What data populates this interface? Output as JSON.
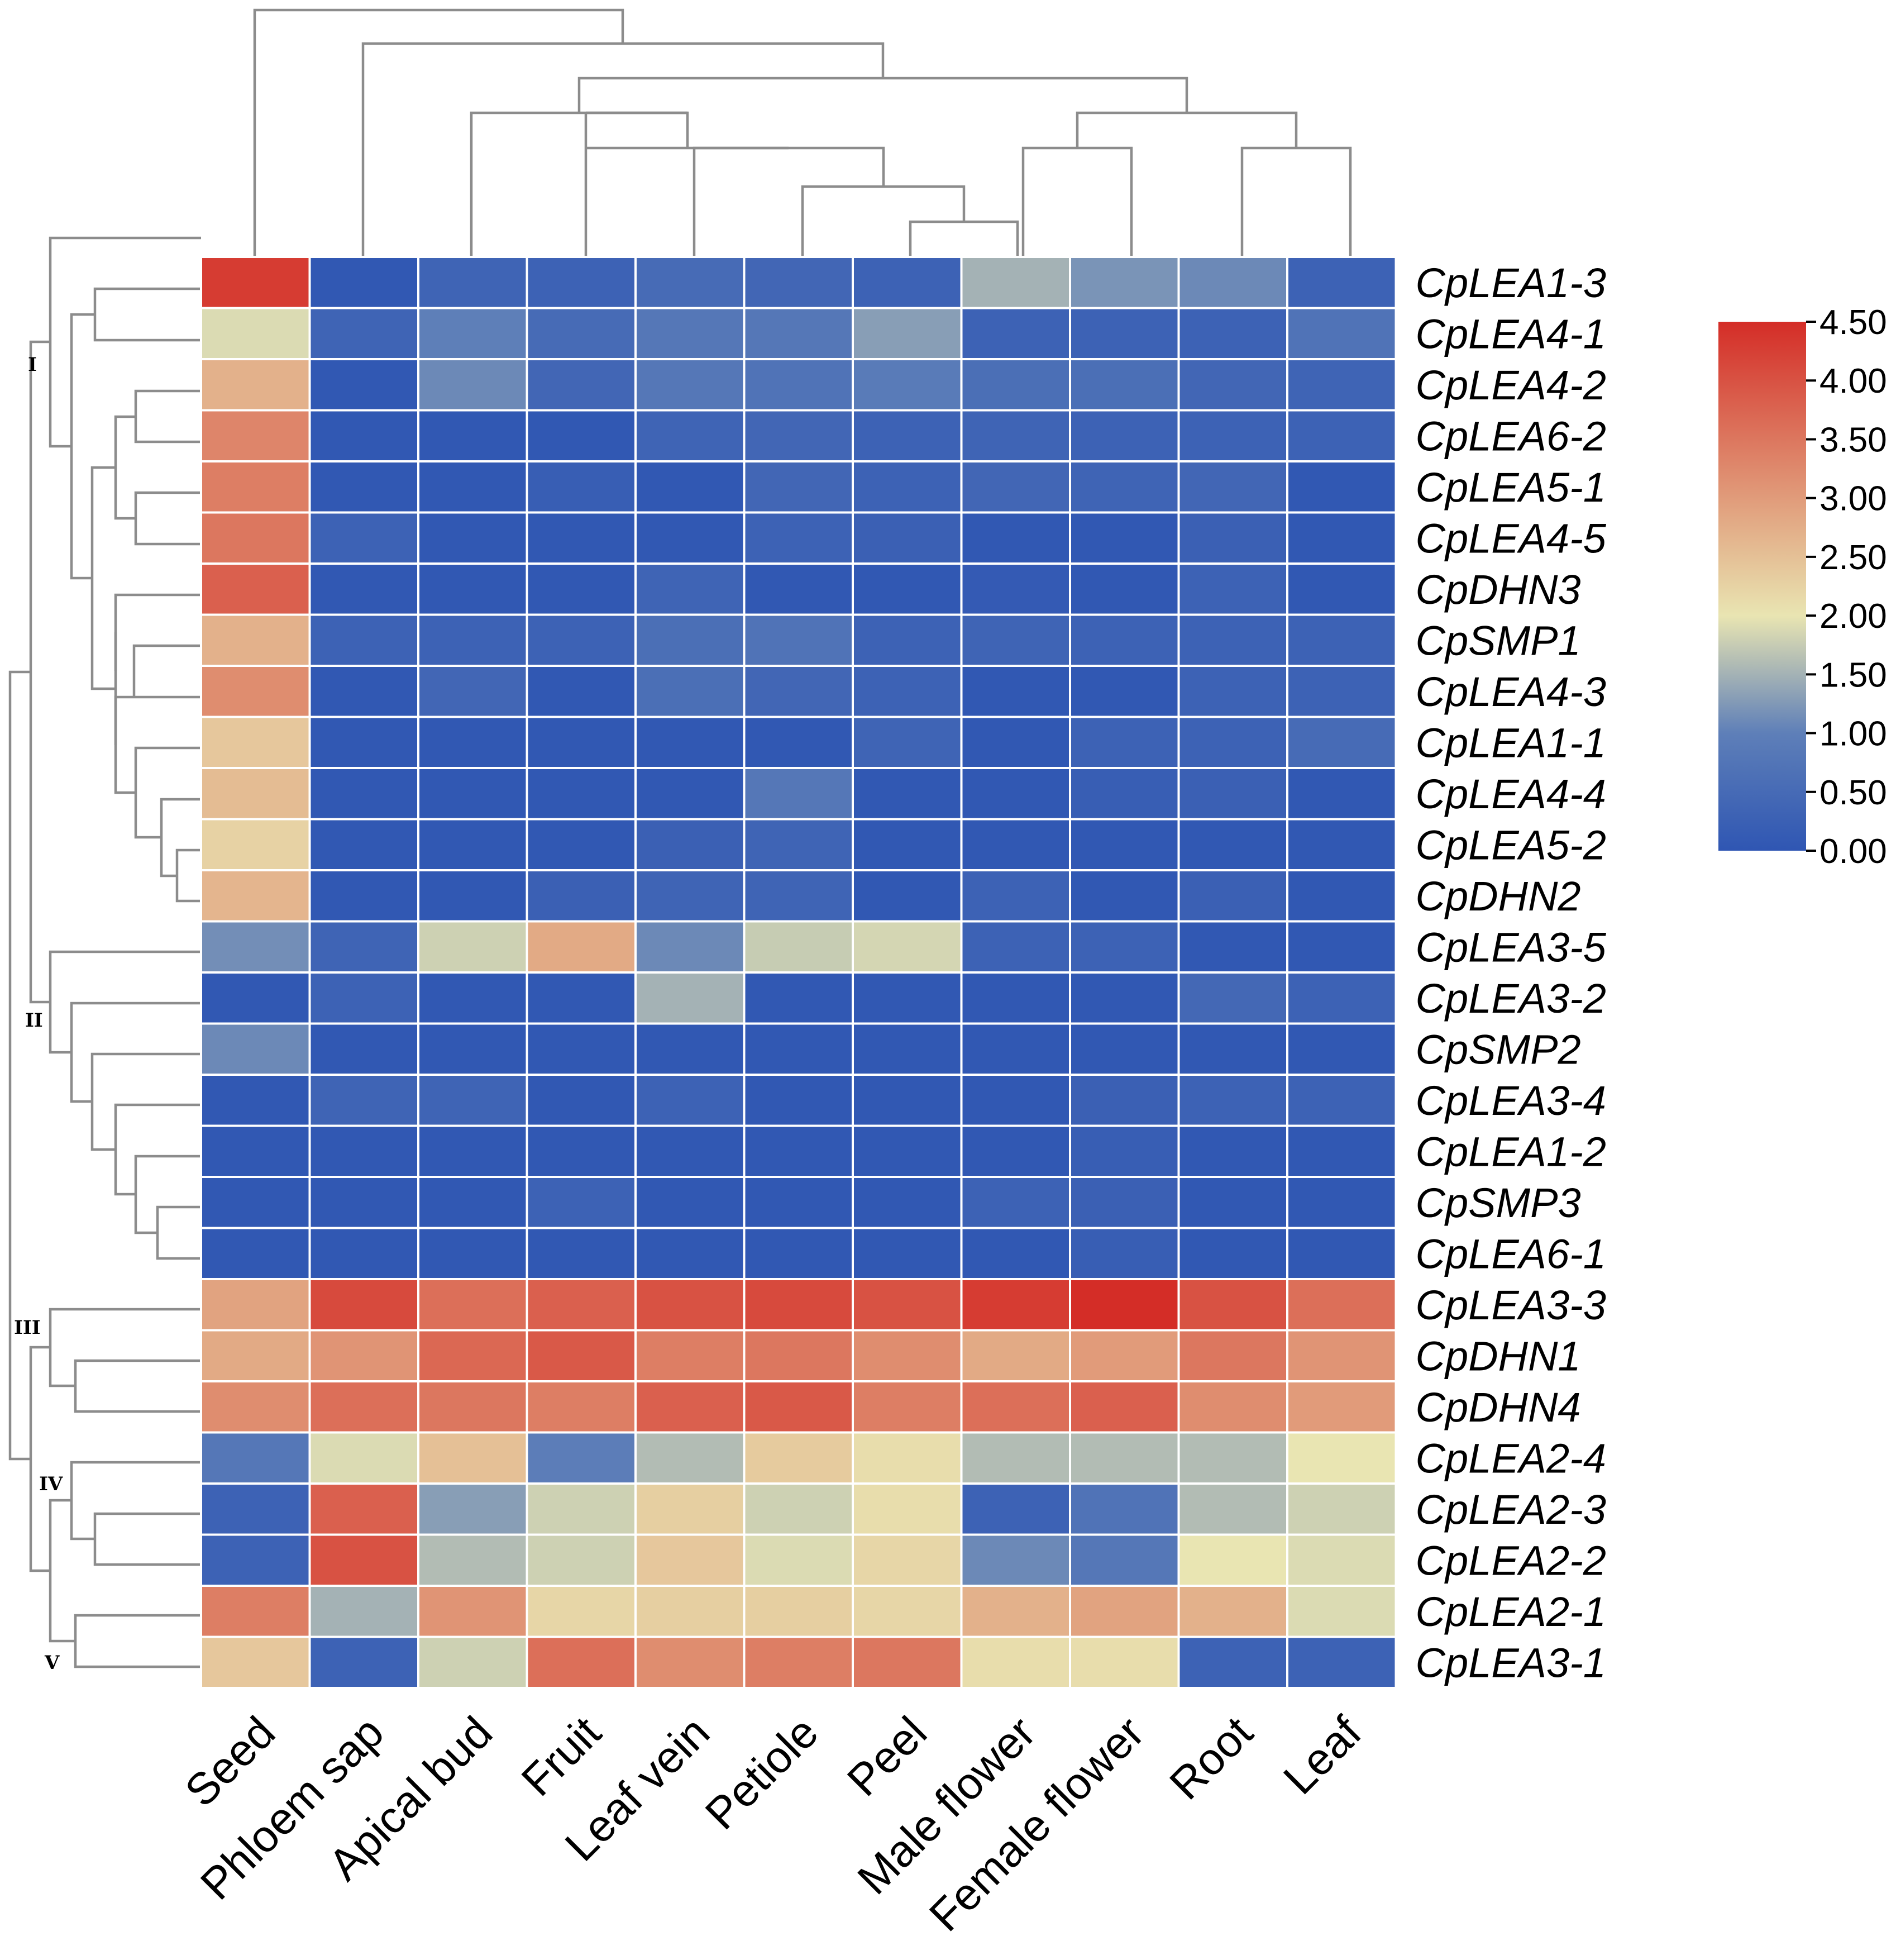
{
  "chart_data": {
    "type": "heatmap",
    "title": "",
    "columns": [
      "Seed",
      "Phloem sap",
      "Apical bud",
      "Fruit",
      "Leaf vein",
      "Petiole",
      "Peel",
      "Male flower",
      "Female flower",
      "Root",
      "Leaf"
    ],
    "rows": [
      "CpLEA1-3",
      "CpLEA4-1",
      "CpLEA4-2",
      "CpLEA6-2",
      "CpLEA5-1",
      "CpLEA4-5",
      "CpDHN3",
      "CpSMP1",
      "CpLEA4-3",
      "CpLEA1-1",
      "CpLEA4-4",
      "CpLEA5-2",
      "CpDHN2",
      "CpLEA3-5",
      "CpLEA3-2",
      "CpSMP2",
      "CpLEA3-4",
      "CpLEA1-2",
      "CpSMP3",
      "CpLEA6-1",
      "CpLEA3-3",
      "CpDHN1",
      "CpDHN4",
      "CpLEA2-4",
      "CpLEA2-3",
      "CpLEA2-2",
      "CpLEA2-1",
      "CpLEA3-1"
    ],
    "values": [
      [
        4.3,
        0.05,
        0.35,
        0.3,
        0.5,
        0.4,
        0.3,
        1.5,
        1.2,
        1.1,
        0.3
      ],
      [
        1.9,
        0.35,
        1.0,
        0.5,
        0.8,
        0.8,
        1.3,
        0.3,
        0.3,
        0.3,
        0.7
      ],
      [
        2.7,
        0.05,
        1.1,
        0.4,
        0.8,
        0.7,
        0.9,
        0.6,
        0.6,
        0.4,
        0.35
      ],
      [
        3.3,
        0.05,
        0.05,
        0.05,
        0.35,
        0.4,
        0.3,
        0.35,
        0.3,
        0.3,
        0.3
      ],
      [
        3.4,
        0.05,
        0.05,
        0.2,
        0.05,
        0.4,
        0.3,
        0.4,
        0.35,
        0.4,
        0.05
      ],
      [
        3.5,
        0.3,
        0.05,
        0.05,
        0.05,
        0.3,
        0.25,
        0.05,
        0.05,
        0.25,
        0.05
      ],
      [
        3.8,
        0.05,
        0.05,
        0.05,
        0.35,
        0.05,
        0.05,
        0.1,
        0.05,
        0.3,
        0.05
      ],
      [
        2.7,
        0.3,
        0.3,
        0.3,
        0.6,
        0.7,
        0.3,
        0.35,
        0.3,
        0.3,
        0.3
      ],
      [
        3.2,
        0.05,
        0.4,
        0.05,
        0.6,
        0.4,
        0.3,
        0.05,
        0.05,
        0.3,
        0.3
      ],
      [
        2.4,
        0.05,
        0.05,
        0.05,
        0.05,
        0.05,
        0.35,
        0.05,
        0.3,
        0.3,
        0.5
      ],
      [
        2.55,
        0.05,
        0.05,
        0.05,
        0.05,
        0.8,
        0.05,
        0.05,
        0.2,
        0.25,
        0.05
      ],
      [
        2.25,
        0.05,
        0.05,
        0.05,
        0.25,
        0.35,
        0.05,
        0.05,
        0.05,
        0.05,
        0.05
      ],
      [
        2.65,
        0.05,
        0.05,
        0.25,
        0.35,
        0.35,
        0.05,
        0.3,
        0.05,
        0.25,
        0.05
      ],
      [
        1.15,
        0.35,
        1.8,
        2.8,
        1.1,
        1.75,
        1.85,
        0.3,
        0.3,
        0.05,
        0.05
      ],
      [
        0.05,
        0.3,
        0.05,
        0.05,
        1.5,
        0.05,
        0.05,
        0.05,
        0.05,
        0.45,
        0.3
      ],
      [
        1.1,
        0.05,
        0.05,
        0.05,
        0.05,
        0.05,
        0.05,
        0.05,
        0.05,
        0.05,
        0.05
      ],
      [
        0.05,
        0.35,
        0.35,
        0.05,
        0.3,
        0.05,
        0.05,
        0.05,
        0.25,
        0.3,
        0.3
      ],
      [
        0.05,
        0.05,
        0.05,
        0.05,
        0.05,
        0.05,
        0.05,
        0.05,
        0.2,
        0.05,
        0.05
      ],
      [
        0.05,
        0.05,
        0.05,
        0.3,
        0.05,
        0.05,
        0.05,
        0.3,
        0.25,
        0.05,
        0.05
      ],
      [
        0.05,
        0.05,
        0.05,
        0.05,
        0.05,
        0.05,
        0.05,
        0.05,
        0.2,
        0.05,
        0.05
      ],
      [
        2.9,
        4.1,
        3.6,
        3.8,
        4.0,
        4.1,
        4.0,
        4.3,
        4.5,
        4.0,
        3.6
      ],
      [
        2.8,
        3.1,
        3.7,
        3.9,
        3.4,
        3.5,
        3.2,
        2.8,
        3.0,
        3.5,
        3.1
      ],
      [
        3.2,
        3.6,
        3.5,
        3.4,
        3.8,
        3.9,
        3.4,
        3.6,
        3.8,
        3.2,
        3.0
      ],
      [
        0.8,
        1.9,
        2.5,
        0.95,
        1.6,
        2.35,
        2.1,
        1.6,
        1.6,
        1.6,
        2.0
      ],
      [
        0.3,
        3.8,
        1.3,
        1.8,
        2.3,
        1.8,
        2.1,
        0.3,
        0.7,
        1.6,
        1.8
      ],
      [
        0.3,
        4.0,
        1.6,
        1.8,
        2.4,
        1.9,
        2.2,
        1.1,
        0.8,
        2.0,
        1.9
      ],
      [
        3.4,
        1.5,
        3.1,
        2.2,
        2.3,
        2.3,
        2.2,
        2.7,
        2.9,
        2.7,
        1.9
      ],
      [
        2.4,
        0.3,
        1.8,
        3.6,
        3.2,
        3.4,
        3.5,
        2.1,
        2.1,
        0.3,
        0.3
      ]
    ],
    "colorbar": {
      "min": 0.0,
      "max": 4.5,
      "ticks": [
        "4.50",
        "4.00",
        "3.50",
        "3.00",
        "2.50",
        "2.00",
        "1.50",
        "1.00",
        "0.50",
        "0.00"
      ],
      "colors": [
        "#2f56b3",
        "#5e7fb8",
        "#e9e5b2",
        "#d42d27"
      ]
    },
    "row_clusters": [
      {
        "label": "I",
        "rows": [
          0,
          12
        ]
      },
      {
        "label": "II",
        "rows": [
          13,
          19
        ]
      },
      {
        "label": "III",
        "rows": [
          20,
          22
        ]
      },
      {
        "label": "IV",
        "rows": [
          23,
          25
        ]
      },
      {
        "label": "V",
        "rows": [
          26,
          27
        ]
      }
    ],
    "xlabel": "",
    "ylabel": ""
  }
}
